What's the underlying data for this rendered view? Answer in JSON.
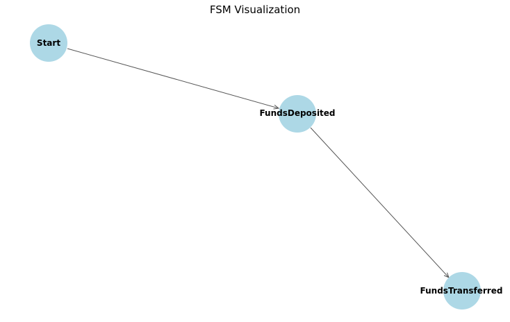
{
  "title": "FSM Visualization",
  "colors": {
    "node_fill": "#add8e6",
    "edge": "#555555",
    "text": "#000000"
  },
  "diagram": {
    "nodes": [
      {
        "id": "start",
        "label": "Start"
      },
      {
        "id": "funds-deposited",
        "label": "FundsDeposited"
      },
      {
        "id": "funds-transferred",
        "label": "FundsTransferred"
      }
    ],
    "edges": [
      {
        "from": "start",
        "to": "funds-deposited"
      },
      {
        "from": "funds-deposited",
        "to": "funds-transferred"
      }
    ]
  }
}
